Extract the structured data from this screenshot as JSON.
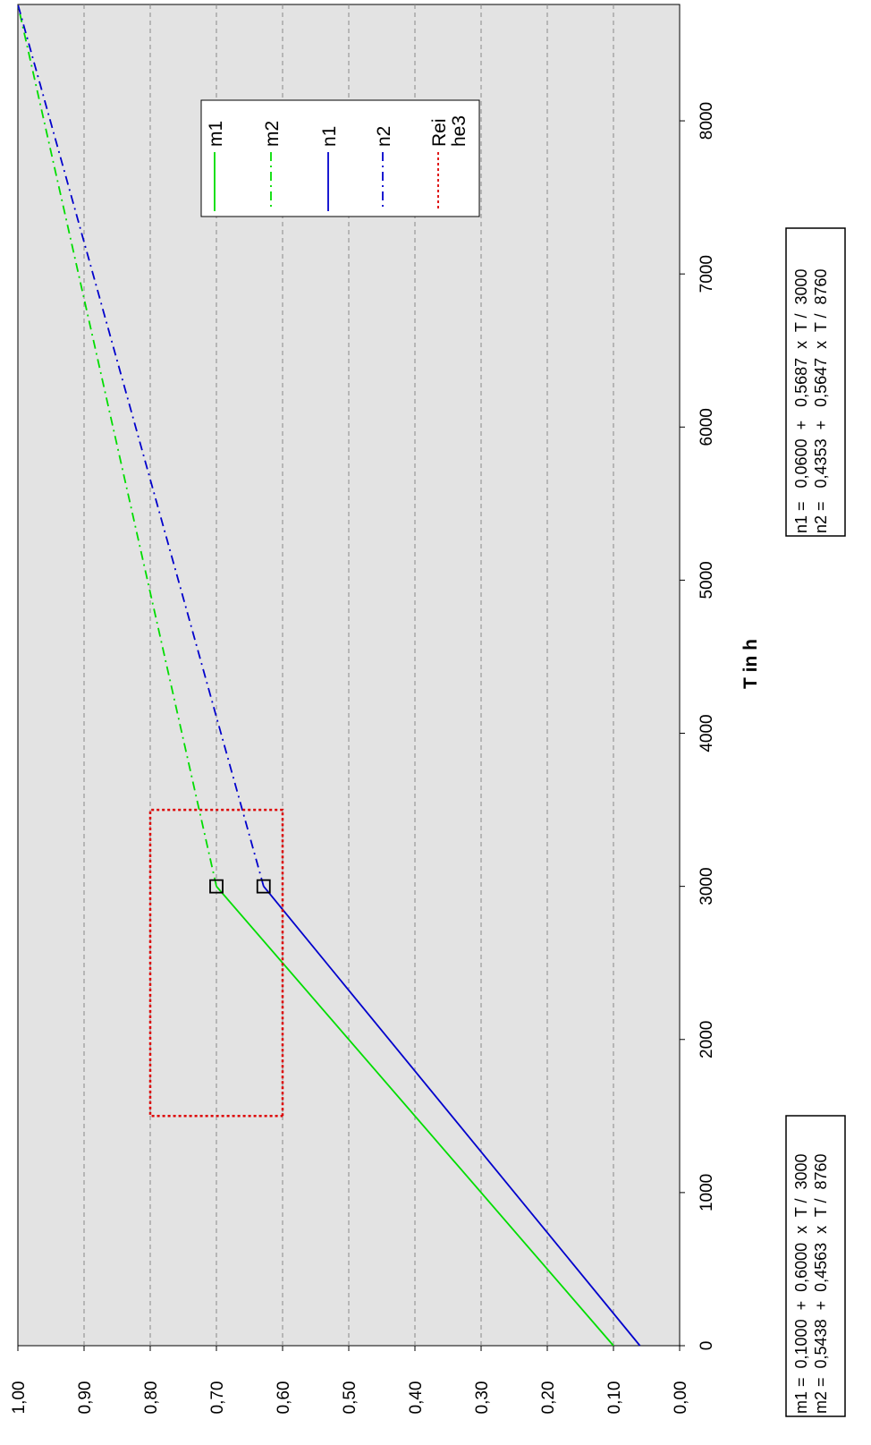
{
  "chart_data": {
    "type": "line",
    "title": "",
    "xlabel": "T in h",
    "ylabel": "",
    "xlim": [
      0,
      8760
    ],
    "ylim": [
      0,
      1
    ],
    "x_ticks": [
      "0",
      "1000",
      "2000",
      "3000",
      "4000",
      "5000",
      "6000",
      "7000",
      "8000"
    ],
    "y_ticks": [
      "0,00",
      "0,10",
      "0,20",
      "0,30",
      "0,40",
      "0,50",
      "0,60",
      "0,70",
      "0,80",
      "0,90",
      "1,00"
    ],
    "grid": "horizontal-dashed",
    "legend_position": "upper-center",
    "series": [
      {
        "name": "m1",
        "color": "#00dd00",
        "dash": "solid",
        "x": [
          0,
          3000
        ],
        "y": [
          0.1,
          0.7
        ]
      },
      {
        "name": "m2",
        "color": "#00dd00",
        "dash": "dashdot",
        "x": [
          3000,
          8760
        ],
        "y": [
          0.7,
          1.0001
        ]
      },
      {
        "name": "n1",
        "color": "#0000cc",
        "dash": "solid",
        "x": [
          0,
          3000
        ],
        "y": [
          0.06,
          0.6287
        ]
      },
      {
        "name": "n2",
        "color": "#0000cc",
        "dash": "dashdot",
        "x": [
          3000,
          8760
        ],
        "y": [
          0.6287,
          1.0
        ]
      },
      {
        "name": "Reihe3",
        "color": "#dd0000",
        "dash": "dotted",
        "x": [
          1500,
          3500,
          3500,
          1500,
          1500
        ],
        "y": [
          0.6,
          0.6,
          0.8,
          0.8,
          0.6
        ]
      }
    ],
    "markers": [
      {
        "x": 3000,
        "y": 0.7
      },
      {
        "x": 3000,
        "y": 0.6287
      }
    ],
    "legend_labels": [
      "m1",
      "m2",
      "n1",
      "n2",
      "Rei",
      "he3"
    ],
    "formulas": {
      "m": [
        "m1 =  0,1000  +  0,6000  x  T /  3000",
        "m2 =  0,5438  +  0,4563  x  T /  8760"
      ],
      "n": [
        "n1 =   0,0600  +   0,5687  x  T /  3000",
        "n2 =   0,4353  +   0,5647  x  T /  8760"
      ]
    }
  }
}
